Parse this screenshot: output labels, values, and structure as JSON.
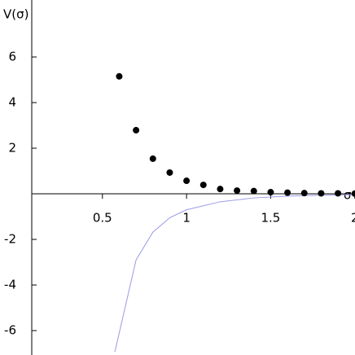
{
  "chart_data": {
    "type": "scatter-line",
    "y_label": "V(σ)",
    "x_label": "σ",
    "xlim": [
      0.08,
      2.19
    ],
    "ylim": [
      -7.07,
      8.5
    ],
    "xticks": [
      0.5,
      1,
      1.5,
      2
    ],
    "yticks": [
      -6,
      -4,
      -2,
      2,
      4,
      6
    ],
    "points": {
      "color": "#000000",
      "x": [
        0.6,
        0.7,
        0.8,
        0.9,
        1.0,
        1.1,
        1.2,
        1.3,
        1.4,
        1.5,
        1.6,
        1.7,
        1.8,
        1.9,
        2.0
      ],
      "values": [
        5.15,
        2.79,
        1.54,
        0.93,
        0.57,
        0.39,
        0.21,
        0.14,
        0.12,
        0.07,
        0.05,
        0.03,
        0.02,
        0.02,
        0.01
      ]
    },
    "curve": {
      "color": "#9a9ae6",
      "x": [
        0.574,
        0.7,
        0.8,
        0.9,
        1.0,
        1.2,
        1.4,
        1.6,
        1.8,
        2.0
      ],
      "values": [
        -6.93,
        -2.9,
        -1.68,
        -1.05,
        -0.7,
        -0.35,
        -0.18,
        -0.1,
        -0.06,
        -0.04
      ]
    }
  }
}
